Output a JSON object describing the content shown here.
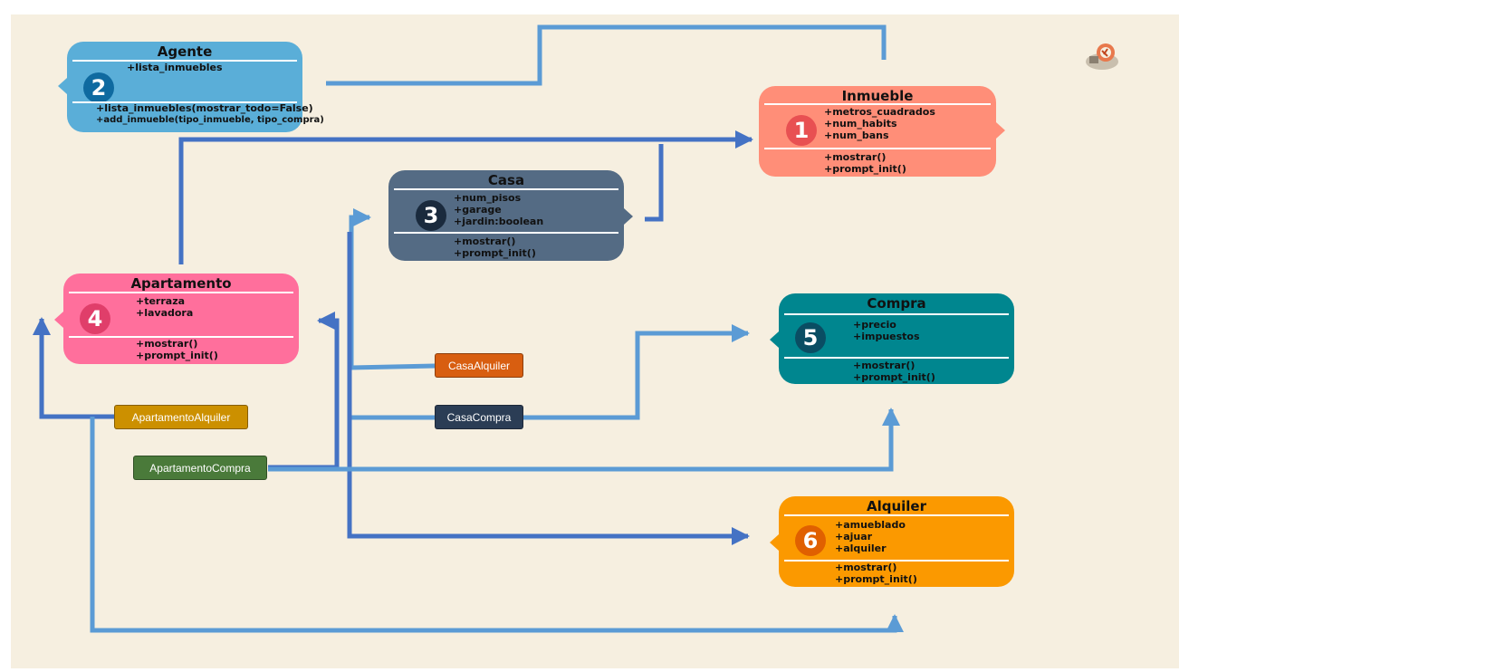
{
  "classes": {
    "agente": {
      "title": "Agente",
      "number": "2",
      "attributes": [
        "+lista_inmuebles"
      ],
      "methods": [
        "+lista_inmuebles(mostrar_todo=False)",
        "+add_inmueble(tipo_inmueble, tipo_compra)"
      ],
      "color": "#5aaed8",
      "badge_color": "#0f6aa0"
    },
    "inmueble": {
      "title": "Inmueble",
      "number": "1",
      "attributes": [
        "+metros_cuadrados",
        "+num_habits",
        "+num_bans"
      ],
      "methods": [
        "+mostrar()",
        "+prompt_init()"
      ],
      "color": "#ff8e78",
      "badge_color": "#e85052"
    },
    "casa": {
      "title": "Casa",
      "number": "3",
      "attributes": [
        "+num_pisos",
        "+garage",
        "+jardin:boolean"
      ],
      "methods": [
        "+mostrar()",
        "+prompt_init()"
      ],
      "color": "#546b84",
      "badge_color": "#1a2a3d"
    },
    "apartamento": {
      "title": "Apartamento",
      "number": "4",
      "attributes": [
        "+terraza",
        "+lavadora"
      ],
      "methods": [
        "+mostrar()",
        "+prompt_init()"
      ],
      "color": "#ff6f9c",
      "badge_color": "#e03e6a"
    },
    "compra": {
      "title": "Compra",
      "number": "5",
      "attributes": [
        "+precio",
        "+impuestos"
      ],
      "methods": [
        "+mostrar()",
        "+prompt_init()"
      ],
      "color": "#00868f",
      "badge_color": "#0a4d63"
    },
    "alquiler": {
      "title": "Alquiler",
      "number": "6",
      "attributes": [
        "+amueblado",
        "+ajuar",
        "+alquiler"
      ],
      "methods": [
        "+mostrar()",
        "+prompt_init()"
      ],
      "color": "#fb9900",
      "badge_color": "#e06000"
    }
  },
  "tags": {
    "casa_alquiler": {
      "label": "CasaAlquiler",
      "color": "#d85e10"
    },
    "casa_compra": {
      "label": "CasaCompra",
      "color": "#2b3d55"
    },
    "apartamento_alquiler": {
      "label": "ApartamentoAlquiler",
      "color": "#cc9000"
    },
    "apartamento_compra": {
      "label": "ApartamentoCompra",
      "color": "#4a7a3a"
    }
  },
  "colors": {
    "background": "#f6efe0",
    "line_dark": "#4472c4",
    "line_light": "#5b9bd5"
  }
}
